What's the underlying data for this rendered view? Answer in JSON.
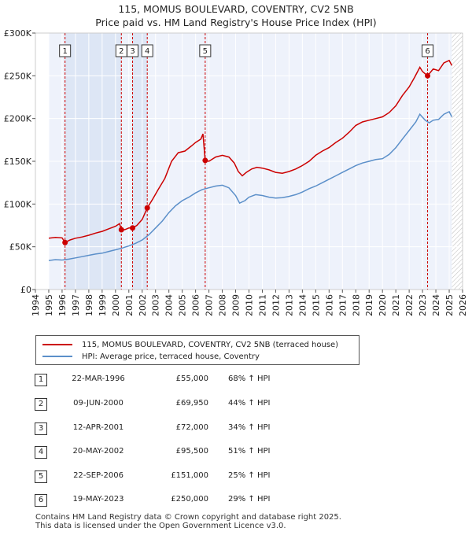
{
  "chart_data": {
    "type": "line",
    "title": "115, MOMUS BOULEVARD, COVENTRY, CV2 5NB",
    "subtitle": "Price paid vs. HM Land Registry's House Price Index (HPI)",
    "xlim": [
      1994,
      2026
    ],
    "ylim": [
      0,
      300000
    ],
    "y_ticks": [
      0,
      50000,
      100000,
      150000,
      200000,
      250000,
      300000
    ],
    "y_tick_labels": [
      "£0",
      "£50K",
      "£100K",
      "£150K",
      "£200K",
      "£250K",
      "£300K"
    ],
    "x_ticks": [
      1994,
      1995,
      1996,
      1997,
      1998,
      1999,
      2000,
      2001,
      2002,
      2003,
      2004,
      2005,
      2006,
      2007,
      2008,
      2009,
      2010,
      2011,
      2012,
      2013,
      2014,
      2015,
      2016,
      2017,
      2018,
      2019,
      2020,
      2021,
      2022,
      2023,
      2024,
      2025,
      2026
    ],
    "x_tick_labels": [
      "1994",
      "1995",
      "1996",
      "1997",
      "1998",
      "1999",
      "2000",
      "2001",
      "2002",
      "2003",
      "2004",
      "2005",
      "2006",
      "2007",
      "2008",
      "2009",
      "2010",
      "2011",
      "2012",
      "2013",
      "2014",
      "2015",
      "2016",
      "2017",
      "2018",
      "2019",
      "2020",
      "2021",
      "2022",
      "2023",
      "2024",
      "2025",
      "2026"
    ],
    "data_start": 1995,
    "data_end_projection": 2025.2,
    "series": [
      {
        "name": "115, MOMUS BOULEVARD, COVENTRY, CV2 5NB (terraced house)",
        "color": "#cc0000",
        "points": [
          [
            1995,
            60000
          ],
          [
            1995.5,
            61000
          ],
          [
            1996.0,
            60500
          ],
          [
            1996.22,
            55000
          ],
          [
            1996.6,
            58000
          ],
          [
            1997,
            60000
          ],
          [
            1997.5,
            61500
          ],
          [
            1998,
            63500
          ],
          [
            1998.5,
            66000
          ],
          [
            1999,
            68000
          ],
          [
            1999.5,
            71000
          ],
          [
            2000,
            74000
          ],
          [
            2000.3,
            77000
          ],
          [
            2000.44,
            69950
          ],
          [
            2000.7,
            70000
          ],
          [
            2001.0,
            72000
          ],
          [
            2001.28,
            72000
          ],
          [
            2001.6,
            75000
          ],
          [
            2002.0,
            82000
          ],
          [
            2002.38,
            95500
          ],
          [
            2002.8,
            106000
          ],
          [
            2003.2,
            117000
          ],
          [
            2003.7,
            130000
          ],
          [
            2004.2,
            150000
          ],
          [
            2004.7,
            160000
          ],
          [
            2005.2,
            162000
          ],
          [
            2005.7,
            168000
          ],
          [
            2006.0,
            172000
          ],
          [
            2006.4,
            176000
          ],
          [
            2006.55,
            182000
          ],
          [
            2006.72,
            151000
          ],
          [
            2007.0,
            150000
          ],
          [
            2007.5,
            155000
          ],
          [
            2008.0,
            157000
          ],
          [
            2008.5,
            155000
          ],
          [
            2008.9,
            148000
          ],
          [
            2009.2,
            138000
          ],
          [
            2009.5,
            133000
          ],
          [
            2009.8,
            137000
          ],
          [
            2010.2,
            141000
          ],
          [
            2010.6,
            143000
          ],
          [
            2011.0,
            142000
          ],
          [
            2011.5,
            140000
          ],
          [
            2012.0,
            137000
          ],
          [
            2012.5,
            136000
          ],
          [
            2013.0,
            138000
          ],
          [
            2013.5,
            141000
          ],
          [
            2014.0,
            145000
          ],
          [
            2014.5,
            150000
          ],
          [
            2015.0,
            157000
          ],
          [
            2015.5,
            162000
          ],
          [
            2016.0,
            166000
          ],
          [
            2016.5,
            172000
          ],
          [
            2017.0,
            177000
          ],
          [
            2017.5,
            184000
          ],
          [
            2018.0,
            192000
          ],
          [
            2018.5,
            196000
          ],
          [
            2019.0,
            198000
          ],
          [
            2019.5,
            200000
          ],
          [
            2020.0,
            202000
          ],
          [
            2020.5,
            207000
          ],
          [
            2021.0,
            215000
          ],
          [
            2021.5,
            227000
          ],
          [
            2022.0,
            237000
          ],
          [
            2022.4,
            248000
          ],
          [
            2022.8,
            260000
          ],
          [
            2023.0,
            255000
          ],
          [
            2023.38,
            250000
          ],
          [
            2023.8,
            258000
          ],
          [
            2024.2,
            256000
          ],
          [
            2024.6,
            265000
          ],
          [
            2025.0,
            268000
          ],
          [
            2025.2,
            262000
          ]
        ]
      },
      {
        "name": "HPI: Average price, terraced house, Coventry",
        "color": "#5b8fc9",
        "points": [
          [
            1995,
            34000
          ],
          [
            1995.5,
            35000
          ],
          [
            1996.0,
            34500
          ],
          [
            1996.5,
            35500
          ],
          [
            1997,
            37000
          ],
          [
            1997.5,
            38500
          ],
          [
            1998,
            40000
          ],
          [
            1998.5,
            41500
          ],
          [
            1999,
            42500
          ],
          [
            1999.5,
            44500
          ],
          [
            2000,
            46500
          ],
          [
            2000.5,
            48500
          ],
          [
            2001,
            51000
          ],
          [
            2001.5,
            54000
          ],
          [
            2002,
            58000
          ],
          [
            2002.5,
            64000
          ],
          [
            2003,
            72000
          ],
          [
            2003.5,
            80000
          ],
          [
            2004,
            90000
          ],
          [
            2004.5,
            98000
          ],
          [
            2005,
            104000
          ],
          [
            2005.5,
            108000
          ],
          [
            2006,
            113000
          ],
          [
            2006.5,
            117000
          ],
          [
            2007,
            119000
          ],
          [
            2007.5,
            121000
          ],
          [
            2008,
            122000
          ],
          [
            2008.5,
            119000
          ],
          [
            2009,
            110000
          ],
          [
            2009.3,
            101000
          ],
          [
            2009.7,
            104000
          ],
          [
            2010,
            108000
          ],
          [
            2010.5,
            111000
          ],
          [
            2011,
            110000
          ],
          [
            2011.5,
            108000
          ],
          [
            2012,
            107000
          ],
          [
            2012.5,
            107500
          ],
          [
            2013,
            109000
          ],
          [
            2013.5,
            111000
          ],
          [
            2014,
            114000
          ],
          [
            2014.5,
            118000
          ],
          [
            2015,
            121000
          ],
          [
            2015.5,
            125000
          ],
          [
            2016,
            129000
          ],
          [
            2016.5,
            133000
          ],
          [
            2017,
            137000
          ],
          [
            2017.5,
            141000
          ],
          [
            2018,
            145000
          ],
          [
            2018.5,
            148000
          ],
          [
            2019,
            150000
          ],
          [
            2019.5,
            152000
          ],
          [
            2020,
            153000
          ],
          [
            2020.5,
            158000
          ],
          [
            2021,
            166000
          ],
          [
            2021.5,
            176000
          ],
          [
            2022,
            186000
          ],
          [
            2022.5,
            196000
          ],
          [
            2022.8,
            205000
          ],
          [
            2023.2,
            198000
          ],
          [
            2023.5,
            195000
          ],
          [
            2023.8,
            198000
          ],
          [
            2024.2,
            199000
          ],
          [
            2024.6,
            205000
          ],
          [
            2025.0,
            208000
          ],
          [
            2025.2,
            202000
          ]
        ]
      }
    ],
    "sales": [
      {
        "n": "1",
        "t": 1996.22,
        "price": 55000
      },
      {
        "n": "2",
        "t": 2000.44,
        "price": 69950
      },
      {
        "n": "3",
        "t": 2001.28,
        "price": 72000
      },
      {
        "n": "4",
        "t": 2002.38,
        "price": 95500
      },
      {
        "n": "5",
        "t": 2006.72,
        "price": 151000
      },
      {
        "n": "6",
        "t": 2023.38,
        "price": 250000
      }
    ]
  },
  "legend": {
    "red_label": "115, MOMUS BOULEVARD, COVENTRY, CV2 5NB (terraced house)",
    "blue_label": "HPI: Average price, terraced house, Coventry"
  },
  "colors": {
    "red": "#cc0000",
    "blue": "#5b8fc9",
    "band": "#dde6f5",
    "plot_bg": "#eef2fb"
  },
  "sales_table": [
    {
      "n": "1",
      "date": "22-MAR-1996",
      "price": "£55,000",
      "hpi": "68% ↑ HPI"
    },
    {
      "n": "2",
      "date": "09-JUN-2000",
      "price": "£69,950",
      "hpi": "44% ↑ HPI"
    },
    {
      "n": "3",
      "date": "12-APR-2001",
      "price": "£72,000",
      "hpi": "34% ↑ HPI"
    },
    {
      "n": "4",
      "date": "20-MAY-2002",
      "price": "£95,500",
      "hpi": "51% ↑ HPI"
    },
    {
      "n": "5",
      "date": "22-SEP-2006",
      "price": "£151,000",
      "hpi": "25% ↑ HPI"
    },
    {
      "n": "6",
      "date": "19-MAY-2023",
      "price": "£250,000",
      "hpi": "29% ↑ HPI"
    }
  ],
  "footer": {
    "line1": "Contains HM Land Registry data © Crown copyright and database right 2025.",
    "line2": "This data is licensed under the Open Government Licence v3.0."
  }
}
